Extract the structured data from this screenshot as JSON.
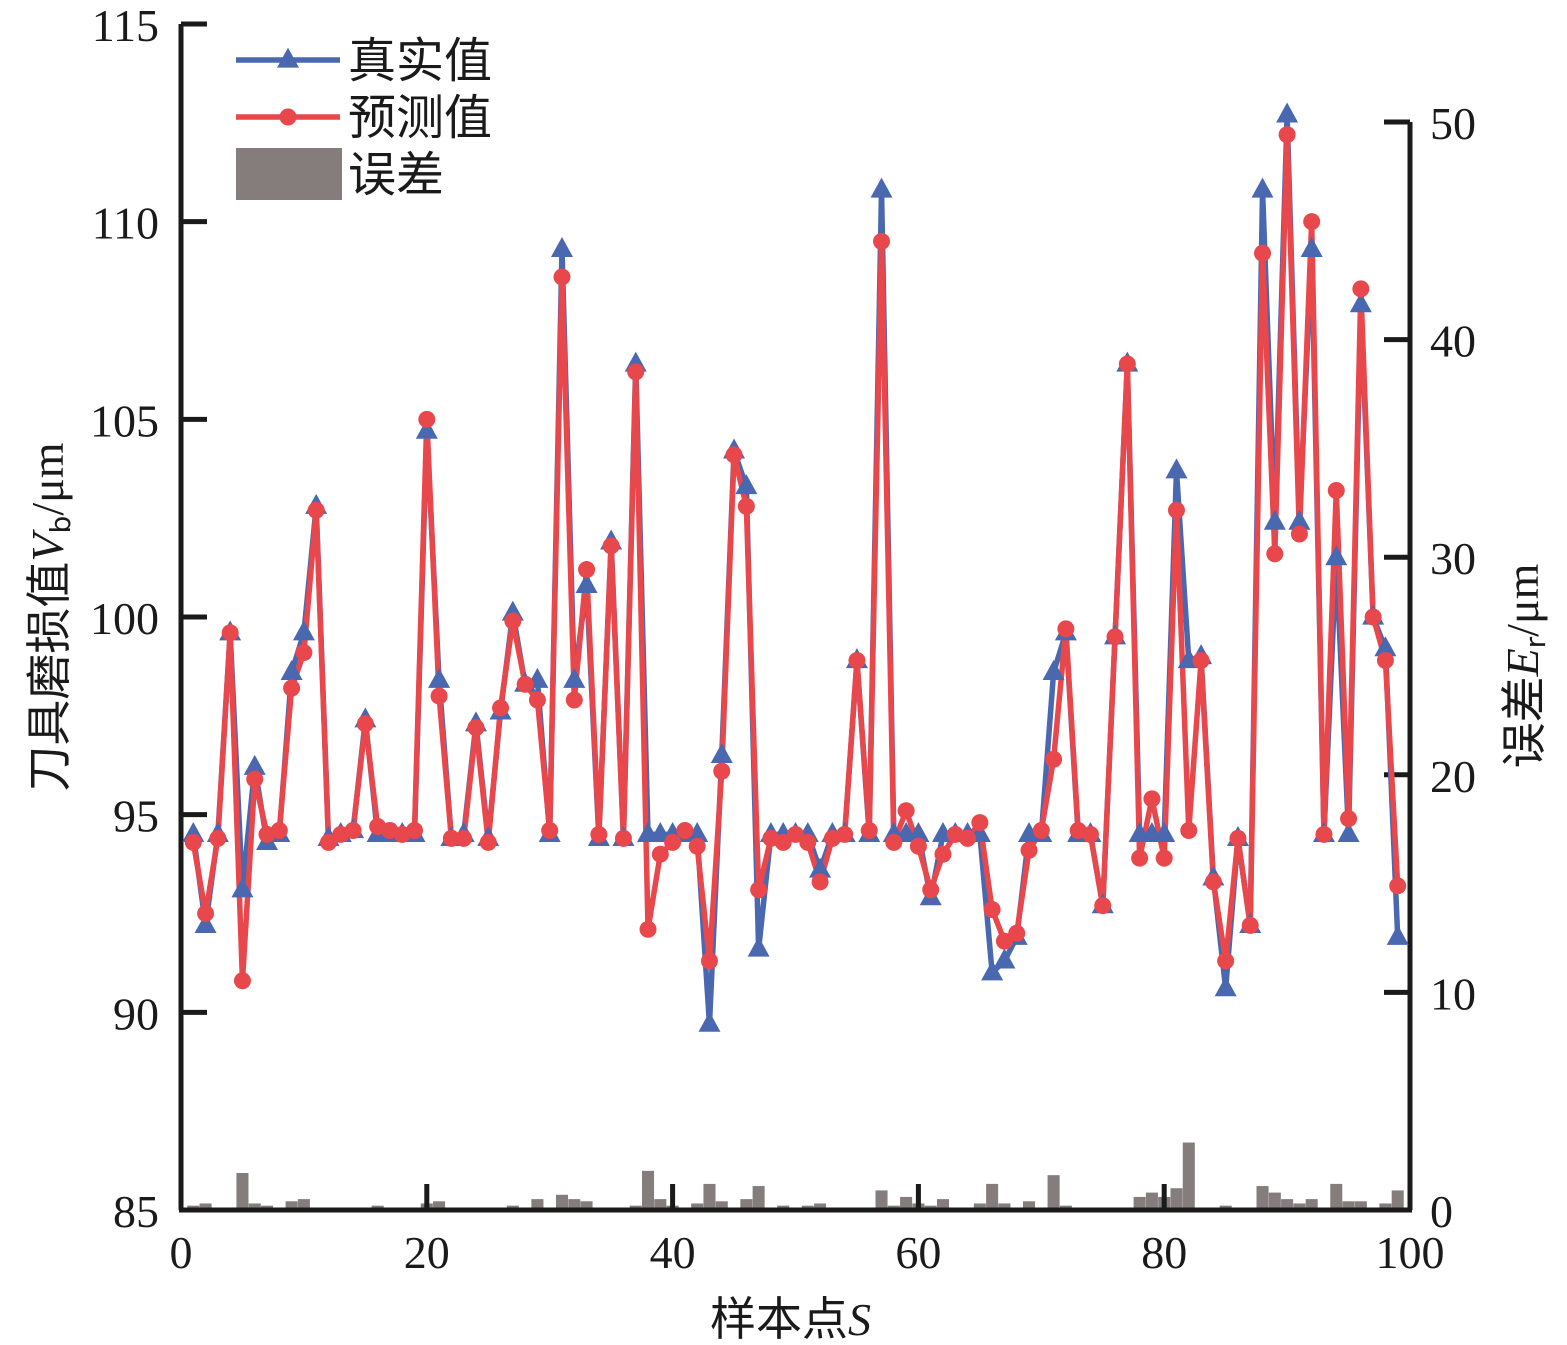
{
  "chart_data": {
    "type": "line",
    "x": [
      1,
      2,
      3,
      4,
      5,
      6,
      7,
      8,
      9,
      10,
      11,
      12,
      13,
      14,
      15,
      16,
      17,
      18,
      19,
      20,
      21,
      22,
      23,
      24,
      25,
      26,
      27,
      28,
      29,
      30,
      31,
      32,
      33,
      34,
      35,
      36,
      37,
      38,
      39,
      40,
      41,
      42,
      43,
      44,
      45,
      46,
      47,
      48,
      49,
      50,
      51,
      52,
      53,
      54,
      55,
      56,
      57,
      58,
      59,
      60,
      61,
      62,
      63,
      64,
      65,
      66,
      67,
      68,
      69,
      70,
      71,
      72,
      73,
      74,
      75,
      76,
      77,
      78,
      79,
      80,
      81,
      82,
      83,
      84,
      85,
      86,
      87,
      88,
      89,
      90,
      91,
      92,
      93,
      94,
      95,
      96,
      97,
      98,
      99
    ],
    "series": [
      {
        "name": "真实值",
        "color": "#4a68b0",
        "marker": "triangle",
        "axis": "left",
        "values": [
          94.5,
          92.2,
          94.5,
          99.6,
          93.1,
          96.2,
          94.3,
          94.5,
          98.6,
          99.6,
          102.8,
          94.4,
          94.5,
          94.6,
          97.4,
          94.5,
          94.5,
          94.5,
          94.5,
          104.7,
          98.4,
          94.4,
          94.5,
          97.3,
          94.4,
          97.6,
          100.1,
          98.3,
          98.4,
          94.5,
          109.3,
          98.4,
          100.8,
          94.4,
          101.9,
          94.4,
          106.4,
          94.5,
          94.5,
          94.5,
          94.5,
          94.5,
          89.7,
          96.5,
          104.2,
          103.3,
          91.6,
          94.5,
          94.5,
          94.5,
          94.5,
          93.6,
          94.5,
          94.5,
          98.9,
          94.5,
          110.8,
          94.5,
          94.5,
          94.5,
          92.9,
          94.5,
          94.5,
          94.5,
          94.5,
          91.0,
          91.3,
          91.9,
          94.5,
          94.5,
          98.6,
          99.6,
          94.5,
          94.5,
          92.7,
          99.5,
          106.4,
          94.5,
          94.5,
          94.5,
          103.7,
          98.9,
          99.0,
          93.4,
          90.6,
          94.4,
          92.2,
          110.8,
          102.4,
          112.7,
          102.4,
          109.3,
          94.5,
          101.5,
          94.5,
          107.9,
          100.0,
          99.2,
          91.9
        ]
      },
      {
        "name": "预测值",
        "color": "#e8474c",
        "marker": "circle",
        "axis": "left",
        "values": [
          94.3,
          92.5,
          94.4,
          99.6,
          90.8,
          95.9,
          94.5,
          94.6,
          98.2,
          99.1,
          102.7,
          94.3,
          94.5,
          94.6,
          97.3,
          94.7,
          94.6,
          94.5,
          94.6,
          105.0,
          98.0,
          94.4,
          94.4,
          97.2,
          94.3,
          97.7,
          99.9,
          98.3,
          97.9,
          94.6,
          108.6,
          97.9,
          101.2,
          94.5,
          101.8,
          94.4,
          106.2,
          92.1,
          94.0,
          94.3,
          94.6,
          94.2,
          91.3,
          96.1,
          104.1,
          102.8,
          93.1,
          94.4,
          94.3,
          94.5,
          94.3,
          93.3,
          94.4,
          94.5,
          98.9,
          94.6,
          109.5,
          94.3,
          95.1,
          94.2,
          93.1,
          94.0,
          94.5,
          94.4,
          94.8,
          92.6,
          91.8,
          92.0,
          94.1,
          94.6,
          96.4,
          99.7,
          94.6,
          94.5,
          92.7,
          99.5,
          106.4,
          93.9,
          95.4,
          93.9,
          102.7,
          94.6,
          98.9,
          93.3,
          91.3,
          94.4,
          92.2,
          109.2,
          101.6,
          112.2,
          102.1,
          110.0,
          94.5,
          103.2,
          94.9,
          108.3,
          100.0,
          98.9,
          93.2
        ]
      },
      {
        "name": "误差",
        "color": "#857c7c",
        "type": "bar",
        "axis": "right",
        "values": [
          0.2,
          0.3,
          0.1,
          0.1,
          1.7,
          0.3,
          0.2,
          0.1,
          0.4,
          0.5,
          0.1,
          0.1,
          0.1,
          0.1,
          0.1,
          0.2,
          0.1,
          0.1,
          0.1,
          0.3,
          0.4,
          0.1,
          0.1,
          0.1,
          0.1,
          0.1,
          0.2,
          0.1,
          0.5,
          0.1,
          0.7,
          0.5,
          0.4,
          0.1,
          0.1,
          0.1,
          0.2,
          1.8,
          0.5,
          0.2,
          0.1,
          0.3,
          1.2,
          0.4,
          0.1,
          0.5,
          1.1,
          0.1,
          0.2,
          0.1,
          0.2,
          0.3,
          0.1,
          0.1,
          0.1,
          0.1,
          0.9,
          0.2,
          0.6,
          0.3,
          0.2,
          0.5,
          0.1,
          0.1,
          0.3,
          1.2,
          0.3,
          0.1,
          0.4,
          0.1,
          1.6,
          0.2,
          0.1,
          0.1,
          0.1,
          0.1,
          0.1,
          0.6,
          0.8,
          0.6,
          1.0,
          3.1,
          0.1,
          0.1,
          0.2,
          0.1,
          0.1,
          1.1,
          0.8,
          0.5,
          0.3,
          0.5,
          0.1,
          1.2,
          0.4,
          0.4,
          0.1,
          0.3,
          0.9
        ]
      }
    ],
    "xlabel": "样本点S",
    "ylabel": "刀具磨损值V_b/μm",
    "y2label": "误差E_r/μm",
    "xlim": [
      0,
      100
    ],
    "ylim": [
      85,
      115
    ],
    "y2lim": [
      0,
      50
    ],
    "xticks": [
      "0",
      "20",
      "40",
      "60",
      "80",
      "100"
    ],
    "yticks": [
      "85",
      "90",
      "95",
      "100",
      "105",
      "110",
      "115"
    ],
    "y2ticks": [
      "0",
      "10",
      "20",
      "30",
      "40",
      "50"
    ],
    "grid": false,
    "legend_position": "top-left"
  }
}
